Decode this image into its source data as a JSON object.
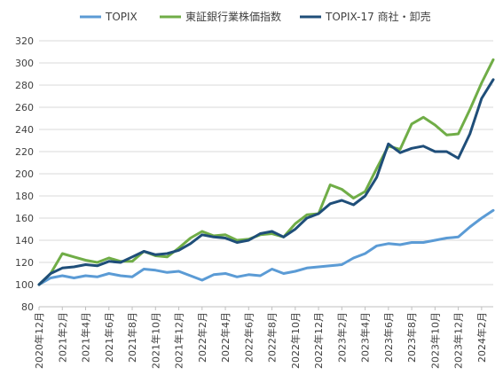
{
  "chart_data": {
    "type": "line",
    "title": "",
    "xlabel": "",
    "ylabel": "",
    "ylim": [
      80,
      320
    ],
    "yticks": [
      80,
      100,
      120,
      140,
      160,
      180,
      200,
      220,
      240,
      260,
      280,
      300,
      320
    ],
    "grid": "horizontal",
    "legend_position": "top",
    "x_tick_labels": [
      "2020年12月",
      "2021年2月",
      "2021年4月",
      "2021年6月",
      "2021年8月",
      "2021年10月",
      "2021年12月",
      "2022年2月",
      "2022年4月",
      "2022年6月",
      "2022年8月",
      "2022年10月",
      "2022年12月",
      "2023年2月",
      "2023年4月",
      "2023年6月",
      "2023年8月",
      "2023年10月",
      "2023年12月",
      "2024年2月"
    ],
    "x": [
      "2020-12",
      "2021-01",
      "2021-02",
      "2021-03",
      "2021-04",
      "2021-05",
      "2021-06",
      "2021-07",
      "2021-08",
      "2021-09",
      "2021-10",
      "2021-11",
      "2021-12",
      "2022-01",
      "2022-02",
      "2022-03",
      "2022-04",
      "2022-05",
      "2022-06",
      "2022-07",
      "2022-08",
      "2022-09",
      "2022-10",
      "2022-11",
      "2022-12",
      "2023-01",
      "2023-02",
      "2023-03",
      "2023-04",
      "2023-05",
      "2023-06",
      "2023-07",
      "2023-08",
      "2023-09",
      "2023-10",
      "2023-11",
      "2023-12",
      "2024-01",
      "2024-02",
      "2024-03"
    ],
    "series": [
      {
        "name": "TOPIX",
        "color": "#5b9bd5",
        "values": [
          100,
          106,
          108,
          106,
          108,
          107,
          110,
          108,
          107,
          114,
          113,
          111,
          112,
          108,
          104,
          109,
          110,
          107,
          109,
          108,
          114,
          110,
          112,
          115,
          116,
          117,
          118,
          124,
          128,
          135,
          137,
          136,
          138,
          138,
          140,
          142,
          143,
          152,
          160,
          167
        ]
      },
      {
        "name": "東証銀行業株価指数",
        "color": "#70ad47",
        "values": [
          100,
          110,
          128,
          125,
          122,
          120,
          124,
          121,
          121,
          130,
          126,
          125,
          133,
          142,
          148,
          144,
          145,
          140,
          141,
          145,
          146,
          143,
          155,
          163,
          164,
          190,
          186,
          178,
          184,
          205,
          225,
          222,
          245,
          251,
          244,
          235,
          236,
          258,
          282,
          303
        ]
      },
      {
        "name": "TOPIX-17 商社・卸売",
        "color": "#1f4e79",
        "values": [
          100,
          110,
          115,
          116,
          118,
          117,
          121,
          120,
          125,
          130,
          127,
          128,
          131,
          137,
          145,
          143,
          142,
          138,
          140,
          146,
          148,
          143,
          150,
          160,
          164,
          173,
          176,
          172,
          180,
          197,
          227,
          219,
          223,
          225,
          220,
          220,
          214,
          236,
          268,
          285
        ]
      }
    ]
  }
}
